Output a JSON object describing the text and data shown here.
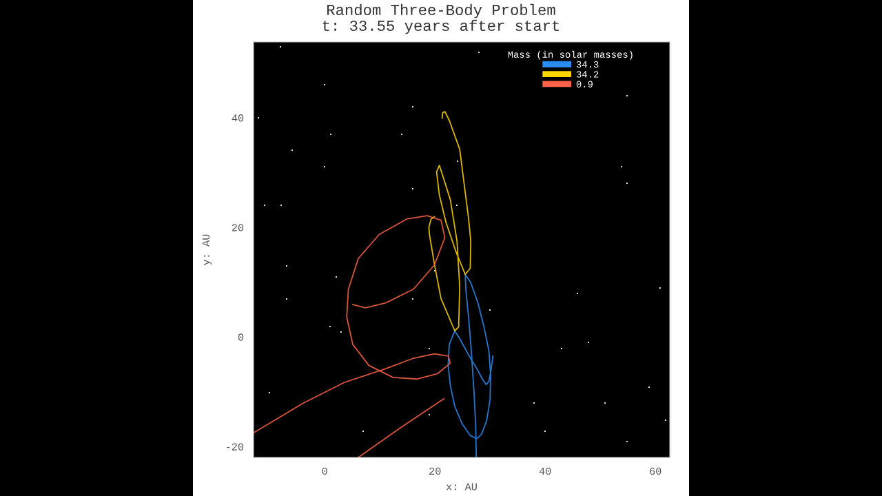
{
  "chart_data": {
    "type": "line",
    "title": "Random Three-Body Problem",
    "subtitle": "t: 33.55 years after start",
    "xlabel": "x: AU",
    "ylabel": "y: AU",
    "legend_title": "Mass (in solar masses)",
    "xlim": [
      -12.9,
      62.6
    ],
    "ylim": [
      -22.0,
      53.8
    ],
    "xticks": [
      0,
      20,
      40,
      60
    ],
    "yticks": [
      -20,
      0,
      20,
      40
    ],
    "grid": false,
    "legend": "top right",
    "marker": "none",
    "line_style": "solid",
    "series": [
      {
        "name": "34.3",
        "color": "#2a8cf0",
        "x": [
          27.5,
          27.4,
          27.1,
          26.6,
          26.1,
          25.6,
          25.5,
          26.5,
          27.8,
          28.9,
          29.8,
          30.1,
          30.0,
          29.4,
          28.5,
          27.6,
          26.4,
          24.9,
          23.6,
          22.8,
          22.4,
          22.6,
          23.6,
          24.6,
          26.1,
          27.6,
          28.6,
          29.3,
          29.8,
          30.1,
          30.4,
          30.5
        ],
        "values": [
          -22.0,
          -16.5,
          -10.2,
          -2.6,
          3.6,
          8.7,
          11.4,
          9.9,
          6.2,
          1.8,
          -2.6,
          -7.0,
          -11.4,
          -15.2,
          -17.7,
          -18.6,
          -18.0,
          -15.8,
          -12.7,
          -8.9,
          -5.2,
          -1.4,
          1.1,
          -0.5,
          -3.3,
          -5.8,
          -7.7,
          -8.7,
          -8.1,
          -6.4,
          -4.5,
          -3.5
        ]
      },
      {
        "name": "34.2",
        "color": "#ffd700",
        "x": [
          19.9,
          19.3,
          18.9,
          19.0,
          19.9,
          21.1,
          23.6,
          24.3,
          24.5,
          24.0,
          22.8,
          21.1,
          20.8,
          20.3,
          20.8,
          22.0,
          23.9,
          25.5,
          26.4,
          26.5,
          26.1,
          24.5,
          22.6,
          21.8,
          21.4,
          21.3
        ],
        "values": [
          21.9,
          21.5,
          20.0,
          18.7,
          13.3,
          7.0,
          1.1,
          1.8,
          9.1,
          17.5,
          25.0,
          30.4,
          31.3,
          30.1,
          25.9,
          20.9,
          15.3,
          11.4,
          12.5,
          17.5,
          21.6,
          34.2,
          39.5,
          41.1,
          40.9,
          39.9
        ]
      },
      {
        "name": "0.9",
        "color": "#ff6347",
        "x": [
          5.1,
          7.4,
          11.1,
          16.1,
          19.9,
          21.8,
          21.1,
          18.6,
          14.9,
          9.9,
          6.1,
          4.3,
          4.0,
          5.1,
          8.0,
          12.4,
          16.8,
          20.5,
          22.8,
          22.4,
          19.9,
          16.1,
          11.1,
          3.6,
          -3.9,
          -12.9,
          null,
          6.1,
          13.6,
          21.6
        ],
        "values": [
          5.9,
          5.3,
          6.2,
          8.7,
          13.1,
          18.1,
          21.3,
          22.1,
          21.5,
          18.7,
          14.3,
          8.7,
          3.6,
          -1.4,
          -5.2,
          -7.4,
          -7.7,
          -6.7,
          -4.8,
          -3.5,
          -3.1,
          -3.9,
          -5.8,
          -8.3,
          -12.1,
          -17.5,
          null,
          -22.0,
          -16.7,
          -11.3
        ]
      }
    ]
  }
}
